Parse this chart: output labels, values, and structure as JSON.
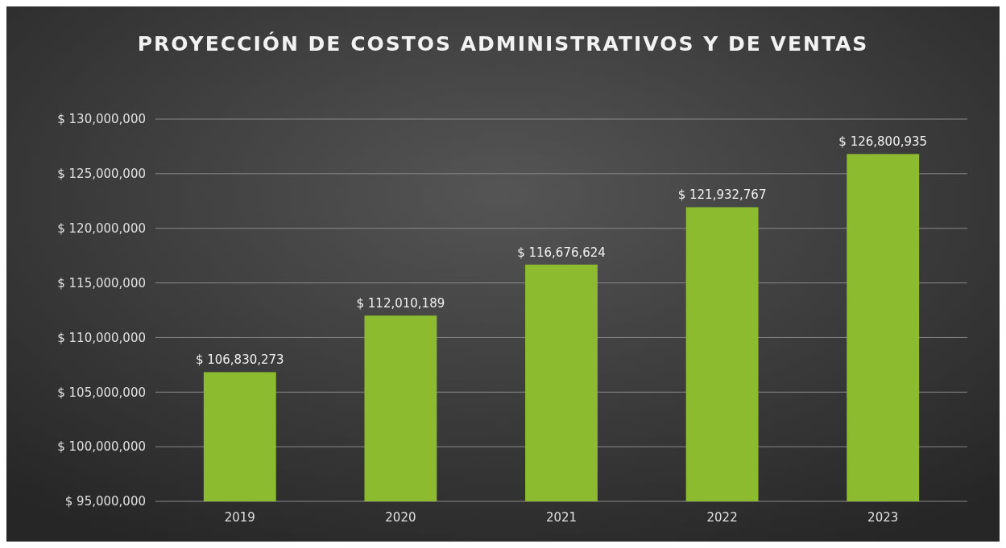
{
  "chart_data": {
    "type": "bar",
    "title": "PROYECCIÓN DE COSTOS ADMINISTRATIVOS Y DE VENTAS",
    "categories": [
      "2019",
      "2020",
      "2021",
      "2022",
      "2023"
    ],
    "values": [
      106830273,
      112010189,
      116676624,
      121932767,
      126800935
    ],
    "value_labels": [
      "$ 106,830,273",
      "$ 112,010,189",
      "$ 116,676,624",
      "$ 121,932,767",
      "$ 126,800,935"
    ],
    "color": "#8dbb2f",
    "ylim": [
      95000000,
      130000000
    ],
    "yticks": [
      {
        "value": 95000000,
        "label": "$ 95,000,000"
      },
      {
        "value": 100000000,
        "label": "$ 100,000,000"
      },
      {
        "value": 105000000,
        "label": "$ 105,000,000"
      },
      {
        "value": 110000000,
        "label": "$ 110,000,000"
      },
      {
        "value": 115000000,
        "label": "$ 115,000,000"
      },
      {
        "value": 120000000,
        "label": "$ 120,000,000"
      },
      {
        "value": 125000000,
        "label": "$ 125,000,000"
      },
      {
        "value": 130000000,
        "label": "$ 130,000,000"
      }
    ],
    "grid": true
  }
}
